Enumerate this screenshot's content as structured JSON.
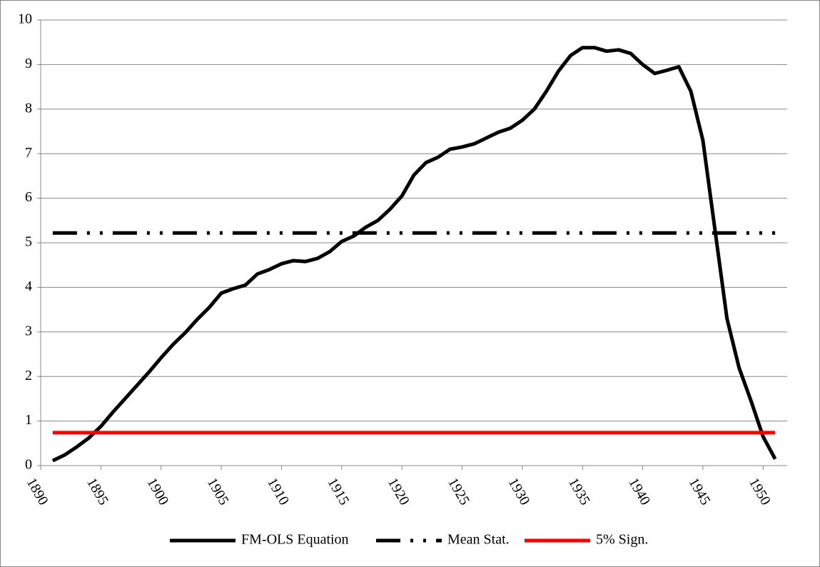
{
  "chart_data": {
    "type": "line",
    "x": [
      1891,
      1892,
      1893,
      1894,
      1895,
      1896,
      1897,
      1898,
      1899,
      1900,
      1901,
      1902,
      1903,
      1904,
      1905,
      1906,
      1907,
      1908,
      1909,
      1910,
      1911,
      1912,
      1913,
      1914,
      1915,
      1916,
      1917,
      1918,
      1919,
      1920,
      1921,
      1922,
      1923,
      1924,
      1925,
      1926,
      1927,
      1928,
      1929,
      1930,
      1931,
      1932,
      1933,
      1934,
      1935,
      1936,
      1937,
      1938,
      1939,
      1940,
      1941,
      1942,
      1943,
      1944,
      1945,
      1946,
      1947,
      1948,
      1949,
      1950,
      1951
    ],
    "series": [
      {
        "name": "FM-OLS Equation",
        "color": "#000000",
        "style": "solid",
        "values": [
          0.11,
          0.24,
          0.42,
          0.62,
          0.88,
          1.2,
          1.5,
          1.8,
          2.1,
          2.42,
          2.72,
          2.98,
          3.28,
          3.55,
          3.87,
          3.97,
          4.05,
          4.3,
          4.4,
          4.53,
          4.6,
          4.58,
          4.65,
          4.8,
          5.03,
          5.15,
          5.35,
          5.5,
          5.75,
          6.05,
          6.52,
          6.8,
          6.92,
          7.1,
          7.15,
          7.22,
          7.35,
          7.48,
          7.57,
          7.75,
          8.0,
          8.4,
          8.85,
          9.2,
          9.38,
          9.38,
          9.3,
          9.33,
          9.25,
          9.0,
          8.8,
          8.87,
          8.95,
          8.4,
          7.3,
          5.3,
          3.3,
          2.2,
          1.45,
          0.65,
          0.15
        ]
      },
      {
        "name": "Mean Stat.",
        "color": "#000000",
        "style": "dash-dot-dot",
        "values": [
          5.22,
          5.22,
          5.22,
          5.22,
          5.22,
          5.22,
          5.22,
          5.22,
          5.22,
          5.22,
          5.22,
          5.22,
          5.22,
          5.22,
          5.22,
          5.22,
          5.22,
          5.22,
          5.22,
          5.22,
          5.22,
          5.22,
          5.22,
          5.22,
          5.22,
          5.22,
          5.22,
          5.22,
          5.22,
          5.22,
          5.22,
          5.22,
          5.22,
          5.22,
          5.22,
          5.22,
          5.22,
          5.22,
          5.22,
          5.22,
          5.22,
          5.22,
          5.22,
          5.22,
          5.22,
          5.22,
          5.22,
          5.22,
          5.22,
          5.22,
          5.22,
          5.22,
          5.22,
          5.22,
          5.22,
          5.22,
          5.22,
          5.22,
          5.22,
          5.22,
          5.22
        ]
      },
      {
        "name": "5% Sign.",
        "color": "#ff0000",
        "style": "solid",
        "values": [
          0.74,
          0.74,
          0.74,
          0.74,
          0.74,
          0.74,
          0.74,
          0.74,
          0.74,
          0.74,
          0.74,
          0.74,
          0.74,
          0.74,
          0.74,
          0.74,
          0.74,
          0.74,
          0.74,
          0.74,
          0.74,
          0.74,
          0.74,
          0.74,
          0.74,
          0.74,
          0.74,
          0.74,
          0.74,
          0.74,
          0.74,
          0.74,
          0.74,
          0.74,
          0.74,
          0.74,
          0.74,
          0.74,
          0.74,
          0.74,
          0.74,
          0.74,
          0.74,
          0.74,
          0.74,
          0.74,
          0.74,
          0.74,
          0.74,
          0.74,
          0.74,
          0.74,
          0.74,
          0.74,
          0.74,
          0.74,
          0.74,
          0.74,
          0.74,
          0.74,
          0.74
        ]
      }
    ],
    "xlim": [
      1890,
      1952
    ],
    "xticks": [
      1890,
      1895,
      1900,
      1905,
      1910,
      1915,
      1920,
      1925,
      1930,
      1935,
      1940,
      1945,
      1950
    ],
    "ylim": [
      0,
      10
    ],
    "yticks": [
      0,
      1,
      2,
      3,
      4,
      5,
      6,
      7,
      8,
      9,
      10
    ],
    "grid": true,
    "legend": "bottom"
  }
}
